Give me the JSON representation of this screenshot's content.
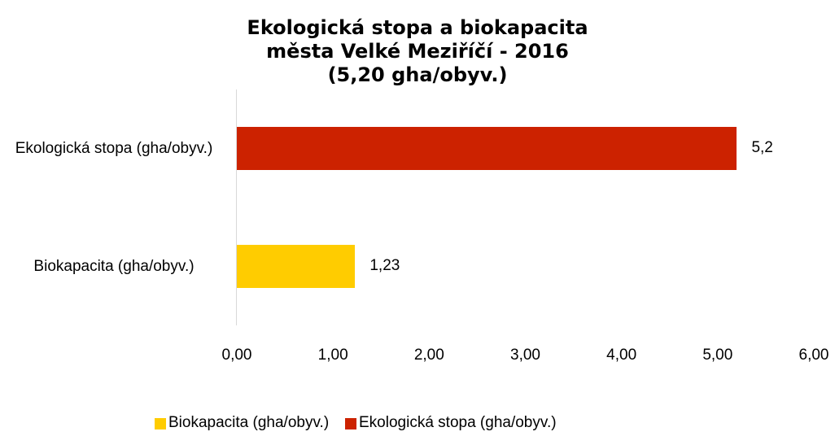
{
  "chart_data": {
    "type": "bar",
    "orientation": "horizontal",
    "title": [
      "Ekologická stopa a biokapacita",
      "města Velké Meziříčí - 2016",
      "(5,20 gha/obyv.)"
    ],
    "categories": [
      "Biokapacita (gha/obyv.)",
      "Ekologická stopa (gha/obyv.)"
    ],
    "values": [
      1.23,
      5.2
    ],
    "value_labels": [
      "1,23",
      "5,2"
    ],
    "colors": [
      "#ffcc00",
      "#cc2200"
    ],
    "xlim": [
      0,
      6
    ],
    "xticks": [
      {
        "value": 0,
        "label": "0,00"
      },
      {
        "value": 1,
        "label": "1,00"
      },
      {
        "value": 2,
        "label": "2,00"
      },
      {
        "value": 3,
        "label": "3,00"
      },
      {
        "value": 4,
        "label": "4,00"
      },
      {
        "value": 5,
        "label": "5,00"
      },
      {
        "value": 6,
        "label": "6,00"
      }
    ],
    "grid": false,
    "legend": "bottom"
  }
}
